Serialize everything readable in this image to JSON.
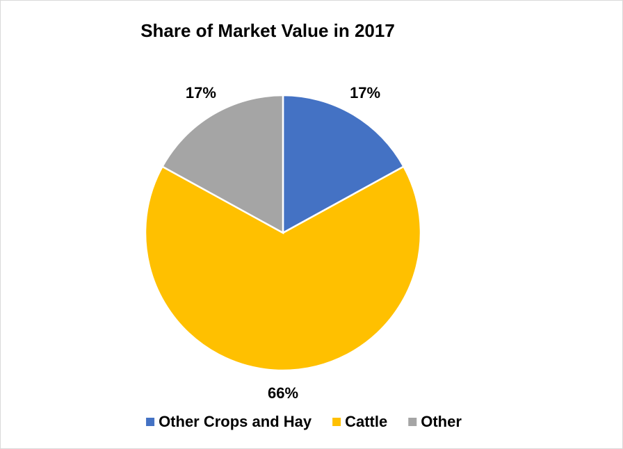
{
  "chart_data": {
    "type": "pie",
    "title": "Share of Market Value in 2017",
    "categories": [
      "Other Crops and Hay",
      "Cattle",
      "Other"
    ],
    "values": [
      17,
      66,
      17
    ],
    "value_labels": [
      "17%",
      "66%",
      "17%"
    ],
    "colors": [
      "#4472c4",
      "#ffc000",
      "#a5a5a5"
    ],
    "legend": "bottom"
  }
}
